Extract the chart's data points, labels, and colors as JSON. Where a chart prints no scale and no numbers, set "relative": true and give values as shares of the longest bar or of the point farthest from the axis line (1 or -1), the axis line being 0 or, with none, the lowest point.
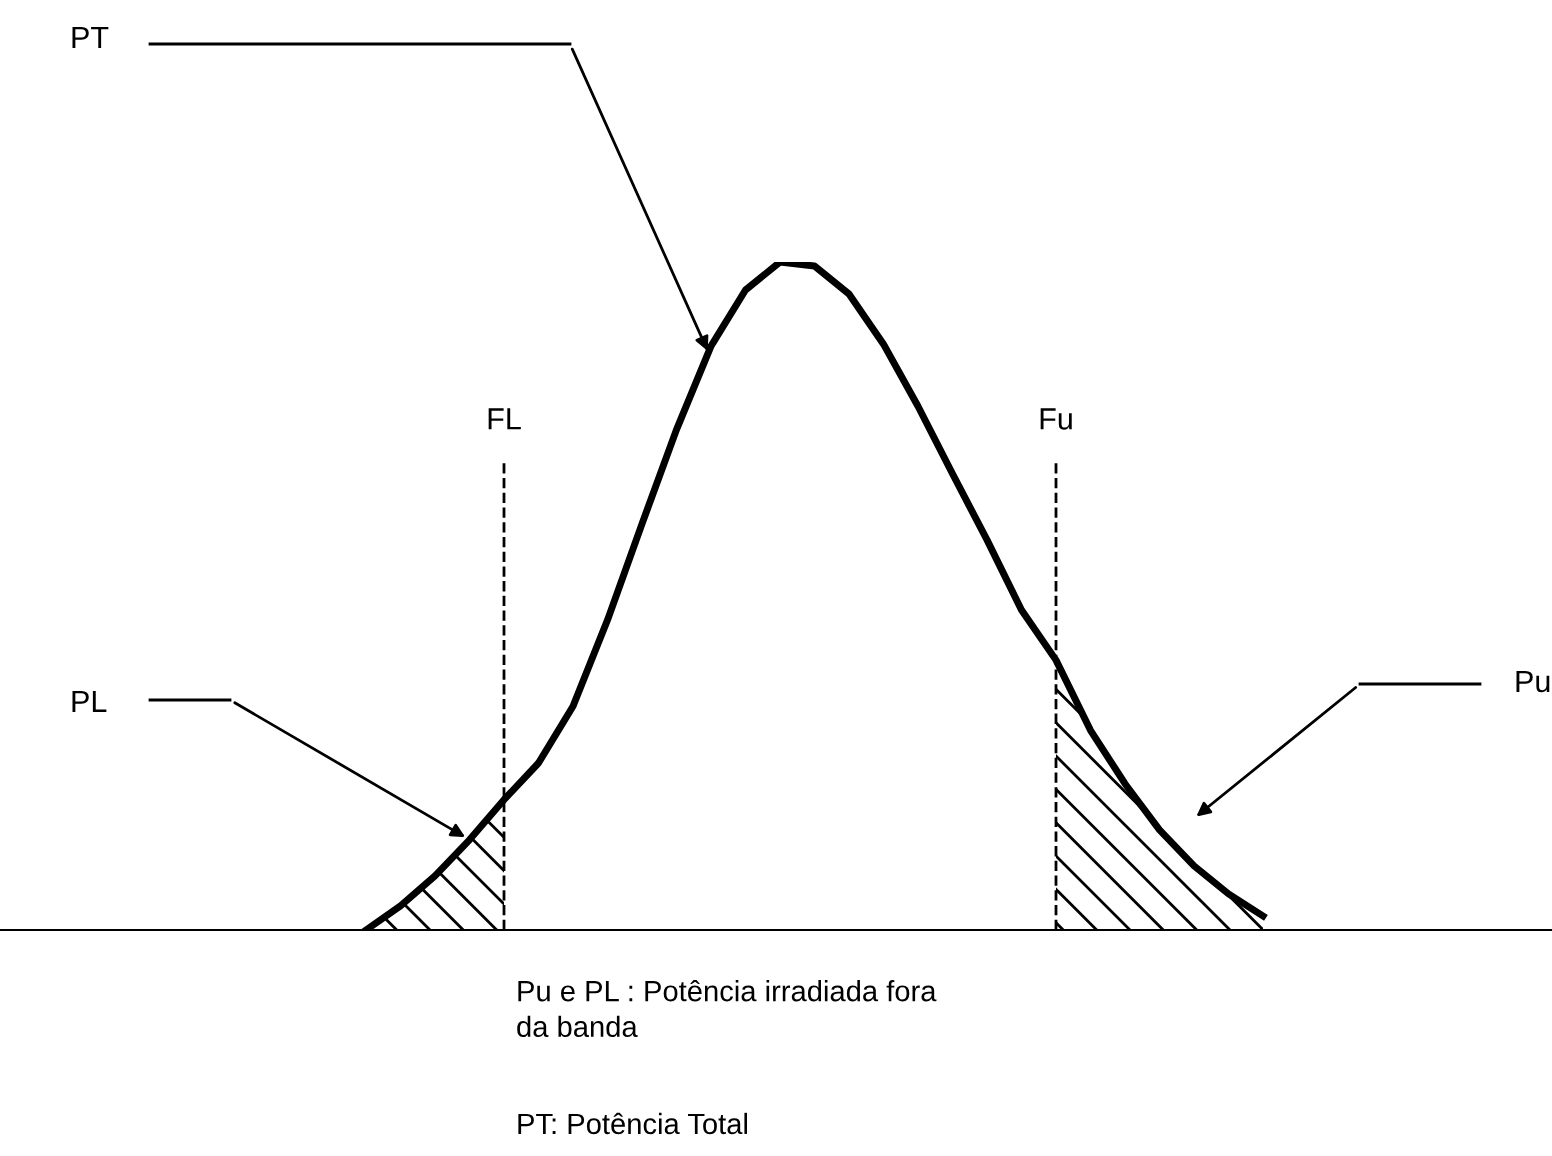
{
  "chart_data": {
    "type": "line",
    "relative": true,
    "categories": [
      null,
      null,
      null,
      null,
      "FL",
      null,
      null,
      null,
      null,
      null,
      null,
      null,
      null,
      null,
      null,
      null,
      null,
      null,
      null,
      null,
      "Fu",
      null,
      null,
      null,
      null,
      null,
      null
    ],
    "series": [
      {
        "color": "#000000",
        "values": [
          0,
          0.036,
          0.081,
          0.135,
          0.195,
          0.25,
          0.335,
          0.464,
          0.608,
          0.749,
          0.874,
          0.958,
          1.0,
          0.994,
          0.952,
          0.877,
          0.784,
          0.683,
          0.584,
          0.479,
          0.404,
          0.299,
          0.219,
          0.15,
          0.096,
          0.054,
          0.021
        ]
      },
      {
        "type": "area",
        "color": "#000000",
        "values": [
          0,
          0.036,
          0.081,
          0.135,
          0.195,
          null,
          null,
          null,
          null,
          null,
          null,
          null,
          null,
          null,
          null,
          null,
          null,
          null,
          null,
          null,
          null,
          null,
          null,
          null,
          null,
          null,
          null
        ]
      },
      {
        "type": "area",
        "color": "#000000",
        "values": [
          null,
          null,
          null,
          null,
          null,
          null,
          null,
          null,
          null,
          null,
          null,
          null,
          null,
          null,
          null,
          null,
          null,
          null,
          null,
          null,
          0.404,
          0.299,
          0.219,
          0.15,
          0.096,
          0.054,
          0.021
        ]
      }
    ],
    "ref_lines": [
      {
        "axis": "x",
        "value": "FL",
        "color": "#000000",
        "line_style": "dashed"
      },
      {
        "axis": "x",
        "value": "Fu",
        "color": "#000000",
        "line_style": "dashed"
      }
    ],
    "annotations": [
      "PT",
      "PL",
      "Pu",
      "Pu e PL : Potência irradiada fora\nda banda",
      "PT: Potência Total"
    ]
  }
}
